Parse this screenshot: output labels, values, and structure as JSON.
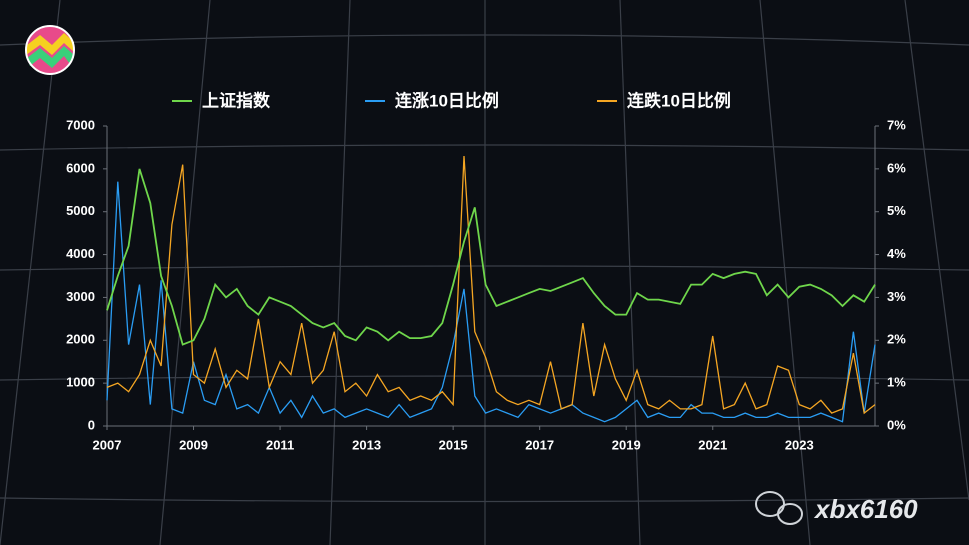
{
  "chart_data": {
    "type": "line",
    "x": [
      2007,
      2007.25,
      2007.5,
      2007.75,
      2008,
      2008.25,
      2008.5,
      2008.75,
      2009,
      2009.25,
      2009.5,
      2009.75,
      2010,
      2010.25,
      2010.5,
      2010.75,
      2011,
      2011.25,
      2011.5,
      2011.75,
      2012,
      2012.25,
      2012.5,
      2012.75,
      2013,
      2013.25,
      2013.5,
      2013.75,
      2014,
      2014.25,
      2014.5,
      2014.75,
      2015,
      2015.25,
      2015.5,
      2015.75,
      2016,
      2016.25,
      2016.5,
      2016.75,
      2017,
      2017.25,
      2017.5,
      2017.75,
      2018,
      2018.25,
      2018.5,
      2018.75,
      2019,
      2019.25,
      2019.5,
      2019.75,
      2020,
      2020.25,
      2020.5,
      2020.75,
      2021,
      2021.25,
      2021.5,
      2021.75,
      2022,
      2022.25,
      2022.5,
      2022.75,
      2023,
      2023.25,
      2023.5,
      2023.75,
      2024,
      2024.25,
      2024.5,
      2024.75
    ],
    "series": [
      {
        "name": "上证指数",
        "color": "#6fd64b",
        "axis": "y",
        "values": [
          2700,
          3500,
          4200,
          6000,
          5200,
          3500,
          2800,
          1900,
          2000,
          2500,
          3300,
          3000,
          3200,
          2800,
          2600,
          3000,
          2900,
          2800,
          2600,
          2400,
          2300,
          2400,
          2100,
          2000,
          2300,
          2200,
          2000,
          2200,
          2050,
          2050,
          2100,
          2400,
          3300,
          4300,
          5100,
          3300,
          2800,
          2900,
          3000,
          3100,
          3200,
          3150,
          3250,
          3350,
          3450,
          3100,
          2800,
          2600,
          2600,
          3100,
          2950,
          2950,
          2900,
          2850,
          3300,
          3300,
          3550,
          3450,
          3550,
          3600,
          3550,
          3050,
          3300,
          3000,
          3250,
          3300,
          3200,
          3050,
          2800,
          3050,
          2900,
          3300
        ]
      },
      {
        "name": "连涨10日比例",
        "color": "#2a9df4",
        "axis": "y2",
        "values": [
          0.6,
          5.7,
          1.9,
          3.3,
          0.5,
          3.4,
          0.4,
          0.3,
          1.5,
          0.6,
          0.5,
          1.2,
          0.4,
          0.5,
          0.3,
          0.9,
          0.3,
          0.6,
          0.2,
          0.7,
          0.3,
          0.4,
          0.2,
          0.3,
          0.4,
          0.3,
          0.2,
          0.5,
          0.2,
          0.3,
          0.4,
          0.9,
          1.9,
          3.2,
          0.7,
          0.3,
          0.4,
          0.3,
          0.2,
          0.5,
          0.4,
          0.3,
          0.4,
          0.5,
          0.3,
          0.2,
          0.1,
          0.2,
          0.4,
          0.6,
          0.2,
          0.3,
          0.2,
          0.2,
          0.5,
          0.3,
          0.3,
          0.2,
          0.2,
          0.3,
          0.2,
          0.2,
          0.3,
          0.2,
          0.2,
          0.2,
          0.3,
          0.2,
          0.1,
          2.2,
          0.3,
          1.9
        ]
      },
      {
        "name": "连跌10日比例",
        "color": "#f5a623",
        "axis": "y2",
        "values": [
          0.9,
          1.0,
          0.8,
          1.2,
          2.0,
          1.4,
          4.7,
          6.1,
          1.2,
          1.0,
          1.8,
          0.9,
          1.3,
          1.1,
          2.5,
          0.9,
          1.5,
          1.2,
          2.4,
          1.0,
          1.3,
          2.2,
          0.8,
          1.0,
          0.7,
          1.2,
          0.8,
          0.9,
          0.6,
          0.7,
          0.6,
          0.8,
          0.5,
          6.3,
          2.2,
          1.6,
          0.8,
          0.6,
          0.5,
          0.6,
          0.5,
          1.5,
          0.4,
          0.5,
          2.4,
          0.7,
          1.9,
          1.1,
          0.6,
          1.3,
          0.5,
          0.4,
          0.6,
          0.4,
          0.4,
          0.5,
          2.1,
          0.4,
          0.5,
          1.0,
          0.4,
          0.5,
          1.4,
          1.3,
          0.5,
          0.4,
          0.6,
          0.3,
          0.4,
          1.7,
          0.3,
          0.5
        ]
      }
    ],
    "xlim": [
      2007,
      2024.75
    ],
    "xticks": [
      2007,
      2009,
      2011,
      2013,
      2015,
      2017,
      2019,
      2021,
      2023
    ],
    "ylim": [
      0,
      7000
    ],
    "yticks": [
      0,
      1000,
      2000,
      3000,
      4000,
      5000,
      6000,
      7000
    ],
    "y2lim": [
      0,
      7
    ],
    "y2ticks": [
      {
        "value": 0,
        "label": "0%"
      },
      {
        "value": 1,
        "label": "1%"
      },
      {
        "value": 2,
        "label": "2%"
      },
      {
        "value": 3,
        "label": "3%"
      },
      {
        "value": 4,
        "label": "4%"
      },
      {
        "value": 5,
        "label": "5%"
      },
      {
        "value": 6,
        "label": "6%"
      },
      {
        "value": 7,
        "label": "7%"
      }
    ],
    "legend": "top"
  },
  "watermark": "xbx6160"
}
